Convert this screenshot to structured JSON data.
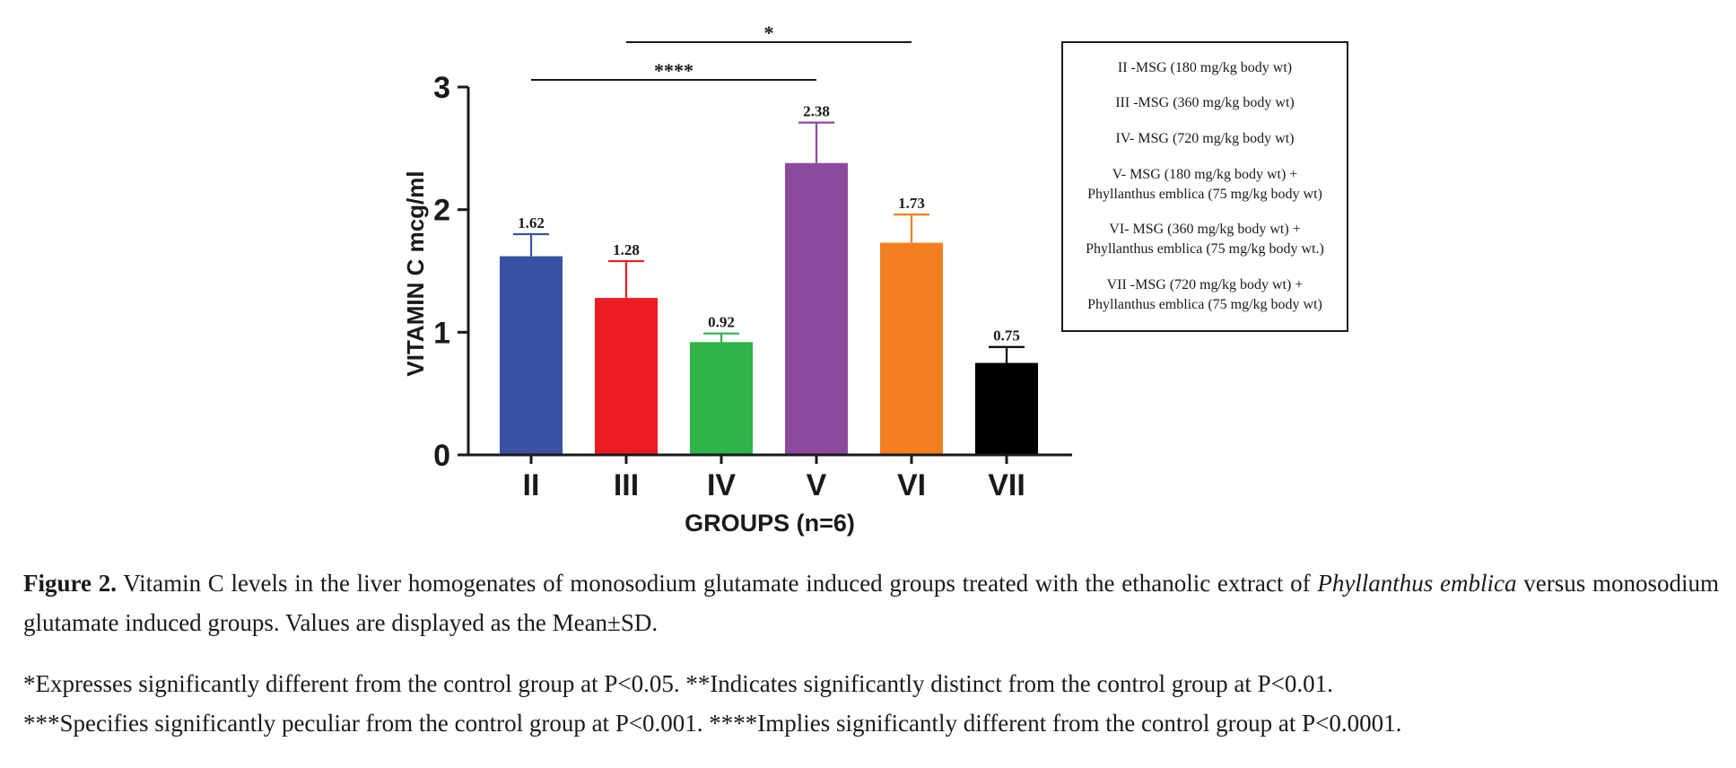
{
  "chart_data": {
    "type": "bar",
    "categories": [
      "II",
      "III",
      "IV",
      "V",
      "VI",
      "VII"
    ],
    "values": [
      1.62,
      1.28,
      0.92,
      2.38,
      1.73,
      0.75
    ],
    "errors": [
      0.18,
      0.3,
      0.07,
      0.33,
      0.23,
      0.13
    ],
    "data_labels": [
      "1.62",
      "1.28",
      "0.92",
      "2.38",
      "1.73",
      "0.75"
    ],
    "colors": [
      "#3a52a4",
      "#ed1c24",
      "#2fb34a",
      "#8b4a9c",
      "#f37f20",
      "#000000"
    ],
    "xlabel": "GROUPS (n=6)",
    "ylabel": "VITAMIN C mcg/ml",
    "ylim": [
      0,
      3
    ],
    "yticks": [
      0,
      1,
      2,
      3
    ],
    "ytick_labels": [
      "0",
      "1",
      "2",
      "3"
    ],
    "grid": false,
    "significance": [
      {
        "from": "II",
        "to": "V",
        "label": "****"
      },
      {
        "from": "III",
        "to": "VI",
        "label": "*"
      }
    ],
    "legend_position": "right",
    "legend": [
      {
        "line1": "II -MSG (180 mg/kg body wt)",
        "line2": ""
      },
      {
        "line1": "III -MSG (360 mg/kg body wt)",
        "line2": ""
      },
      {
        "line1": "IV- MSG (720 mg/kg body wt)",
        "line2": ""
      },
      {
        "line1": "V- MSG (180 mg/kg body wt) +",
        "line2": "Phyllanthus emblica  (75 mg/kg body wt)"
      },
      {
        "line1": "VI- MSG (360 mg/kg body wt) +",
        "line2": "Phyllanthus emblica (75 mg/kg body wt.)"
      },
      {
        "line1": "VII -MSG (720 mg/kg body wt)  +",
        "line2": "Phyllanthus emblica  (75 mg/kg body wt)"
      }
    ]
  },
  "caption": {
    "figure_label": "Figure 2.",
    "text_part1": " Vitamin C levels in the liver homogenates of monosodium glutamate induced groups treated with the ethanolic extract of ",
    "italic_part": "Phyllanthus emblica",
    "text_part2": " versus monosodium glutamate induced groups. Values are displayed as the Mean±SD.",
    "note_line1": "*Expresses significantly different from the control group at P<0.05. **Indicates significantly distinct from the control group at P<0.01.",
    "note_line2": "***Specifies significantly peculiar from the control group at P<0.001. ****Implies significantly different from the control group at P<0.0001."
  }
}
